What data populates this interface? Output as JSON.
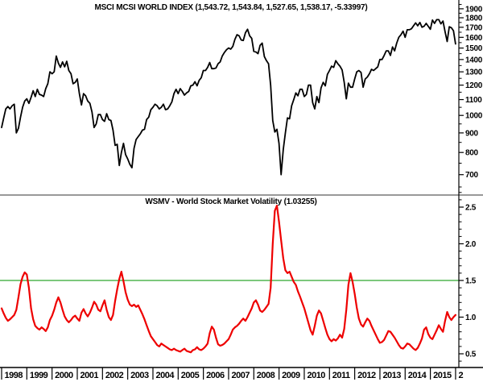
{
  "top_panel": {
    "title": "MSCI MCSI WORLD INDEX (1,543.72, 1,543.84, 1,527.65, 1,538.17, -5.33997)"
  },
  "bottom_panel": {
    "title": "WSMV - World Stock Market Volatility (1.03255)"
  },
  "x_axis": {
    "years": [
      "1998",
      "1999",
      "2000",
      "2001",
      "2002",
      "2003",
      "2004",
      "2005",
      "2006",
      "2007",
      "2008",
      "2009",
      "2010",
      "2011",
      "2012",
      "2013",
      "2014",
      "2015"
    ],
    "partial_next_label": "2"
  },
  "colors": {
    "price_line": "#000000",
    "volatility_line": "#ee0000",
    "threshold_line": "#7cc87c",
    "panel_divider": "#999999",
    "axis": "#000000",
    "background": "#ffffff"
  },
  "chart_data": [
    {
      "id": "msci-world-index",
      "type": "line",
      "title": "MSCI MCSI WORLD INDEX (1,543.72, 1,543.84, 1,527.65, 1,538.17, -5.33997)",
      "series_name": "MSCI World Index",
      "color": "#000000",
      "y_scale": "log",
      "ylim": [
        640,
        1960
      ],
      "y_ticks": [
        1900,
        1800,
        1700,
        1600,
        1500,
        1400,
        1300,
        1200,
        1100,
        1000,
        900,
        800,
        700
      ],
      "y_minor_ticks": [
        1950,
        1850,
        1750,
        1650,
        1550,
        1450,
        1350,
        1250,
        1150,
        1050,
        950,
        850,
        750,
        650
      ],
      "legend_position": "none",
      "grid": false,
      "x_start_year": 1998,
      "points_per_year": 12,
      "last_value": 1538.17,
      "values": [
        930,
        985,
        1040,
        1055,
        1040,
        1060,
        1070,
        900,
        925,
        990,
        1050,
        1090,
        1105,
        1075,
        1115,
        1160,
        1120,
        1170,
        1135,
        1130,
        1120,
        1175,
        1210,
        1300,
        1285,
        1300,
        1430,
        1370,
        1335,
        1380,
        1340,
        1385,
        1310,
        1285,
        1210,
        1220,
        1245,
        1140,
        1065,
        1140,
        1125,
        1090,
        1075,
        1020,
        930,
        950,
        1005,
        1005,
        975,
        965,
        1010,
        975,
        970,
        915,
        835,
        840,
        740,
        800,
        845,
        790,
        770,
        745,
        730,
        820,
        865,
        880,
        895,
        915,
        920,
        975,
        990,
        1035,
        1050,
        1070,
        1060,
        1040,
        1050,
        1070,
        1035,
        1040,
        1060,
        1085,
        1140,
        1170,
        1140,
        1175,
        1155,
        1130,
        1145,
        1155,
        1195,
        1200,
        1225,
        1195,
        1235,
        1255,
        1310,
        1310,
        1335,
        1375,
        1325,
        1325,
        1330,
        1365,
        1380,
        1430,
        1460,
        1485,
        1500,
        1490,
        1515,
        1580,
        1625,
        1615,
        1575,
        1570,
        1645,
        1680,
        1615,
        1590,
        1470,
        1465,
        1450,
        1525,
        1545,
        1425,
        1390,
        1365,
        1200,
        970,
        905,
        920,
        845,
        700,
        815,
        900,
        985,
        980,
        1060,
        1100,
        1145,
        1125,
        1170,
        1170,
        1120,
        1135,
        1200,
        1200,
        1080,
        1040,
        1120,
        1080,
        1180,
        1220,
        1195,
        1280,
        1310,
        1345,
        1335,
        1390,
        1365,
        1345,
        1315,
        1220,
        1105,
        1215,
        1185,
        1185,
        1245,
        1300,
        1310,
        1295,
        1185,
        1245,
        1260,
        1285,
        1320,
        1310,
        1325,
        1340,
        1400,
        1400,
        1435,
        1475,
        1475,
        1435,
        1510,
        1475,
        1545,
        1600,
        1625,
        1660,
        1600,
        1675,
        1675,
        1685,
        1715,
        1745,
        1715,
        1750,
        1700,
        1710,
        1740,
        1710,
        1680,
        1775,
        1740,
        1780,
        1780,
        1735,
        1765,
        1655,
        1560,
        1705,
        1695,
        1665,
        1538
      ]
    },
    {
      "id": "wsmv-volatility",
      "type": "line",
      "title": "WSMV - World Stock Market Volatility (1.03255)",
      "series_name": "WSMV - World Stock Market Volatility",
      "color": "#ee0000",
      "y_scale": "linear",
      "ylim": [
        0.33,
        2.75
      ],
      "y_ticks": [
        2.5,
        2.0,
        1.5,
        1.0,
        0.5
      ],
      "y_minor_ticks": [
        2.7,
        2.6,
        2.4,
        2.3,
        2.2,
        2.1,
        1.9,
        1.8,
        1.7,
        1.6,
        1.4,
        1.3,
        1.2,
        1.1,
        0.9,
        0.8,
        0.7,
        0.6,
        0.4
      ],
      "threshold_line": {
        "value": 1.5,
        "color": "#7cc87c"
      },
      "legend_position": "none",
      "grid": false,
      "x_start_year": 1998,
      "points_per_year": 12,
      "last_value": 1.03255,
      "values": [
        1.12,
        1.05,
        0.99,
        0.95,
        0.97,
        1.0,
        1.03,
        1.1,
        1.27,
        1.45,
        1.55,
        1.61,
        1.58,
        1.4,
        1.12,
        0.97,
        0.88,
        0.85,
        0.83,
        0.86,
        0.84,
        0.81,
        0.86,
        0.96,
        1.02,
        1.1,
        1.2,
        1.27,
        1.2,
        1.1,
        1.01,
        0.96,
        0.93,
        0.96,
        1.0,
        1.02,
        0.98,
        0.95,
        1.06,
        1.11,
        1.05,
        1.01,
        1.06,
        1.13,
        1.21,
        1.17,
        1.1,
        1.08,
        1.16,
        1.23,
        1.1,
        1.0,
        0.96,
        1.03,
        1.22,
        1.38,
        1.52,
        1.62,
        1.49,
        1.34,
        1.24,
        1.17,
        1.15,
        1.17,
        1.14,
        1.16,
        1.1,
        1.04,
        0.97,
        0.89,
        0.81,
        0.74,
        0.7,
        0.66,
        0.62,
        0.6,
        0.64,
        0.62,
        0.6,
        0.58,
        0.56,
        0.55,
        0.57,
        0.55,
        0.54,
        0.53,
        0.55,
        0.57,
        0.54,
        0.53,
        0.52,
        0.55,
        0.56,
        0.59,
        0.56,
        0.55,
        0.57,
        0.6,
        0.64,
        0.78,
        0.87,
        0.83,
        0.72,
        0.63,
        0.61,
        0.62,
        0.64,
        0.67,
        0.7,
        0.76,
        0.83,
        0.86,
        0.88,
        0.91,
        0.95,
        0.98,
        0.95,
        1.0,
        1.06,
        1.12,
        1.2,
        1.23,
        1.17,
        1.09,
        1.07,
        1.1,
        1.14,
        1.18,
        1.4,
        2.0,
        2.45,
        2.52,
        2.3,
        2.05,
        1.8,
        1.64,
        1.6,
        1.62,
        1.55,
        1.48,
        1.44,
        1.35,
        1.28,
        1.2,
        1.12,
        1.02,
        0.92,
        0.82,
        0.76,
        0.88,
        1.02,
        1.09,
        1.05,
        0.95,
        0.85,
        0.76,
        0.7,
        0.67,
        0.7,
        0.68,
        0.71,
        0.76,
        0.72,
        0.84,
        1.1,
        1.44,
        1.6,
        1.48,
        1.32,
        1.13,
        0.98,
        0.9,
        0.87,
        0.93,
        0.98,
        0.95,
        0.88,
        0.82,
        0.76,
        0.7,
        0.65,
        0.66,
        0.69,
        0.75,
        0.81,
        0.8,
        0.76,
        0.72,
        0.67,
        0.62,
        0.58,
        0.57,
        0.6,
        0.64,
        0.63,
        0.6,
        0.57,
        0.55,
        0.58,
        0.64,
        0.71,
        0.83,
        0.86,
        0.77,
        0.72,
        0.7,
        0.76,
        0.82,
        0.89,
        0.84,
        0.8,
        0.95,
        1.07,
        1.0,
        0.96,
        1.0,
        1.03
      ]
    }
  ]
}
